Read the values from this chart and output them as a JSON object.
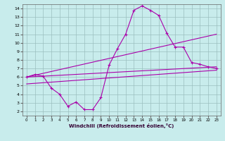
{
  "xlabel": "Windchill (Refroidissement éolien,°C)",
  "background_color": "#c8ecec",
  "line_color": "#aa00aa",
  "xlim": [
    -0.5,
    23.5
  ],
  "ylim": [
    1.5,
    14.5
  ],
  "yticks": [
    2,
    3,
    4,
    5,
    6,
    7,
    8,
    9,
    10,
    11,
    12,
    13,
    14
  ],
  "xticks": [
    0,
    1,
    2,
    3,
    4,
    5,
    6,
    7,
    8,
    9,
    10,
    11,
    12,
    13,
    14,
    15,
    16,
    17,
    18,
    19,
    20,
    21,
    22,
    23
  ],
  "grid_color": "#9bbfbf",
  "series": [
    {
      "x": [
        0,
        1,
        2,
        3,
        4,
        5,
        6,
        7,
        8,
        9,
        10,
        11,
        12,
        13,
        14,
        15,
        16,
        17,
        18,
        19,
        20,
        21,
        22,
        23
      ],
      "y": [
        6.0,
        6.3,
        6.1,
        4.7,
        4.0,
        2.6,
        3.1,
        2.2,
        2.2,
        3.6,
        7.4,
        9.3,
        11.0,
        13.8,
        14.3,
        13.8,
        13.2,
        11.1,
        9.5,
        9.5,
        7.7,
        7.5,
        7.2,
        7.0
      ],
      "marker": "+"
    },
    {
      "x": [
        0,
        23
      ],
      "y": [
        6.0,
        7.2
      ],
      "marker": null
    },
    {
      "x": [
        0,
        23
      ],
      "y": [
        5.2,
        6.8
      ],
      "marker": null
    },
    {
      "x": [
        0,
        23
      ],
      "y": [
        6.0,
        11.0
      ],
      "marker": null
    }
  ]
}
